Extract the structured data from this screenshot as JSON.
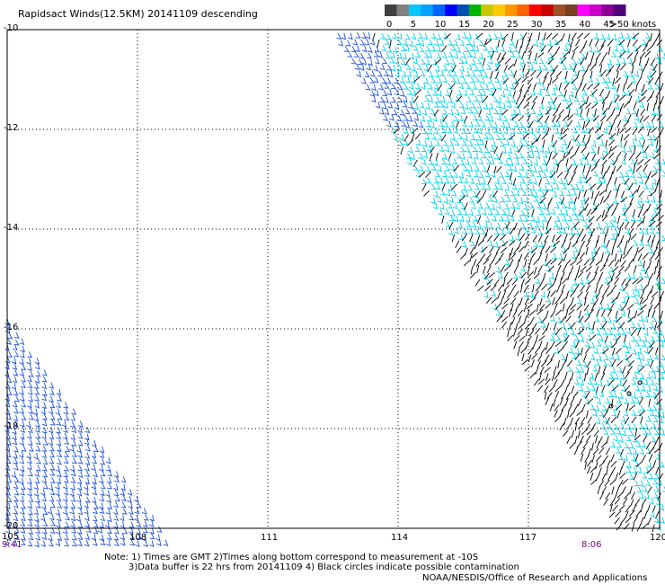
{
  "title": "Rapidsact Winds(12.5KM) 20141109 descending",
  "legend": {
    "unit": "knots",
    "swatches": [
      {
        "color": "#404040",
        "label": "0"
      },
      {
        "color": "#808080",
        "label": ""
      },
      {
        "color": "#00c8ff",
        "label": "5"
      },
      {
        "color": "#00a0ff",
        "label": ""
      },
      {
        "color": "#0064ff",
        "label": "10"
      },
      {
        "color": "#0000ff",
        "label": ""
      },
      {
        "color": "#0050b4",
        "label": "15"
      },
      {
        "color": "#00b400",
        "label": ""
      },
      {
        "color": "#c8c800",
        "label": "20"
      },
      {
        "color": "#ffc800",
        "label": ""
      },
      {
        "color": "#ff9600",
        "label": "25"
      },
      {
        "color": "#ff6400",
        "label": ""
      },
      {
        "color": "#ff0000",
        "label": "30"
      },
      {
        "color": "#c80000",
        "label": ""
      },
      {
        "color": "#a05028",
        "label": "35"
      },
      {
        "color": "#784020",
        "label": ""
      },
      {
        "color": "#ff00ff",
        "label": "40"
      },
      {
        "color": "#c800c8",
        "label": ""
      },
      {
        "color": "#8c0096",
        "label": "45"
      },
      {
        "color": "#500078",
        "label": ">50 knots"
      }
    ]
  },
  "axes": {
    "lat_labels": [
      "-10",
      "-12",
      "-14",
      "-16",
      "-18",
      "-20"
    ],
    "lon_labels": [
      "105",
      "108",
      "111",
      "114",
      "117",
      "120"
    ]
  },
  "times": {
    "left": "9:41",
    "right": "8:06"
  },
  "notes": [
    "Note: 1) Times are GMT 2)Times along bottom correspond to measurement at -10S",
    "3)Data buffer is 22 hrs from 20141109 4) Black circles indicate possible contamination"
  ],
  "credit": "NOAA/NESDIS/Office of Research and Applications",
  "colors": {
    "cyan": "#00d2e6",
    "blue": "#1e50dc",
    "black": "#000000",
    "green": "#00b400"
  }
}
